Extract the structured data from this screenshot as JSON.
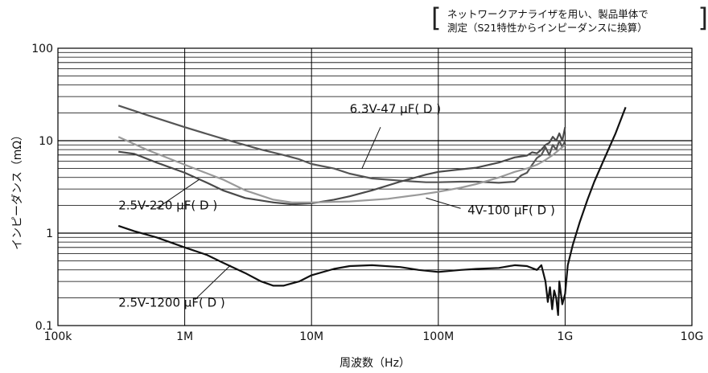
{
  "note": {
    "line1": "ネットワークアナライザを用い、製品単体で",
    "line2": "測定（S21特性からインピーダンスに換算）"
  },
  "chart_data": {
    "type": "line",
    "title": "",
    "xlabel": "周波数（Hz）",
    "ylabel": "インピーダンス（mΩ）",
    "xscale": "log",
    "yscale": "log",
    "xlim": [
      100000,
      10000000000
    ],
    "ylim": [
      0.1,
      100
    ],
    "x_ticks": [
      {
        "value": 100000,
        "label": "100k"
      },
      {
        "value": 1000000,
        "label": "1M"
      },
      {
        "value": 10000000,
        "label": "10M"
      },
      {
        "value": 100000000,
        "label": "100M"
      },
      {
        "value": 1000000000,
        "label": "1G"
      },
      {
        "value": 10000000000,
        "label": "10G"
      }
    ],
    "y_ticks": [
      {
        "value": 0.1,
        "label": "0.1"
      },
      {
        "value": 1,
        "label": "1"
      },
      {
        "value": 10,
        "label": "10"
      },
      {
        "value": 100,
        "label": "100"
      }
    ],
    "grid": true,
    "series": [
      {
        "name": "6.3V-47 μF( D )",
        "color": "#555555",
        "label_at": {
          "x": 20000000,
          "y": 20
        },
        "leader": {
          "from": [
            35000000,
            14
          ],
          "to": [
            25000000,
            5
          ]
        },
        "points": [
          [
            300000,
            24
          ],
          [
            500000,
            19
          ],
          [
            1000000,
            14
          ],
          [
            2000000,
            10.5
          ],
          [
            4000000,
            8
          ],
          [
            6000000,
            7
          ],
          [
            8000000,
            6.3
          ],
          [
            10000000,
            5.6
          ],
          [
            15000000,
            5
          ],
          [
            20000000,
            4.4
          ],
          [
            30000000,
            3.9
          ],
          [
            50000000,
            3.7
          ],
          [
            80000000,
            3.55
          ],
          [
            100000000,
            3.55
          ],
          [
            150000000,
            3.6
          ],
          [
            200000000,
            3.6
          ],
          [
            300000000,
            3.5
          ],
          [
            400000000,
            3.6
          ],
          [
            450000000,
            4.2
          ],
          [
            500000000,
            4.5
          ],
          [
            550000000,
            5.5
          ],
          [
            600000000,
            6.5
          ],
          [
            650000000,
            7
          ],
          [
            700000000,
            8.5
          ],
          [
            750000000,
            7
          ],
          [
            800000000,
            9
          ],
          [
            850000000,
            8
          ],
          [
            900000000,
            10
          ],
          [
            950000000,
            8.5
          ],
          [
            1000000000,
            10
          ]
        ]
      },
      {
        "name": "2.5V-220 μF( D )",
        "color": "#4a4a4a",
        "label_at": {
          "x": 300000,
          "y": 1.8
        },
        "leader": {
          "from": [
            600000,
            1.85
          ],
          "to": [
            1300000,
            3.8
          ]
        },
        "points": [
          [
            300000,
            7.6
          ],
          [
            400000,
            7.2
          ],
          [
            600000,
            5.8
          ],
          [
            1000000,
            4.5
          ],
          [
            1500000,
            3.5
          ],
          [
            2000000,
            2.9
          ],
          [
            3000000,
            2.4
          ],
          [
            5000000,
            2.15
          ],
          [
            7000000,
            2.05
          ],
          [
            10000000,
            2.1
          ],
          [
            15000000,
            2.3
          ],
          [
            20000000,
            2.5
          ],
          [
            30000000,
            2.9
          ],
          [
            50000000,
            3.6
          ],
          [
            80000000,
            4.3
          ],
          [
            100000000,
            4.6
          ],
          [
            150000000,
            4.9
          ],
          [
            200000000,
            5.1
          ],
          [
            300000000,
            5.8
          ],
          [
            400000000,
            6.6
          ],
          [
            500000000,
            6.9
          ],
          [
            550000000,
            7.5
          ],
          [
            600000000,
            7.3
          ],
          [
            650000000,
            8
          ],
          [
            700000000,
            9
          ],
          [
            750000000,
            9.5
          ],
          [
            800000000,
            11
          ],
          [
            850000000,
            10
          ],
          [
            900000000,
            12
          ],
          [
            950000000,
            10
          ],
          [
            1000000000,
            14
          ]
        ]
      },
      {
        "name": "4V-100 μF( D )",
        "color": "#9a9a9a",
        "label_at": {
          "x": 170000000,
          "y": 1.6
        },
        "leader": {
          "from": [
            150000000,
            1.85
          ],
          "to": [
            80000000,
            2.4
          ]
        },
        "points": [
          [
            300000,
            11
          ],
          [
            500000,
            8
          ],
          [
            1000000,
            5.5
          ],
          [
            2000000,
            3.8
          ],
          [
            3000000,
            2.9
          ],
          [
            5000000,
            2.3
          ],
          [
            7000000,
            2.15
          ],
          [
            10000000,
            2.15
          ],
          [
            20000000,
            2.2
          ],
          [
            40000000,
            2.35
          ],
          [
            70000000,
            2.6
          ],
          [
            100000000,
            2.8
          ],
          [
            150000000,
            3.1
          ],
          [
            200000000,
            3.4
          ],
          [
            300000000,
            4
          ],
          [
            400000000,
            4.6
          ],
          [
            500000000,
            5
          ],
          [
            600000000,
            5.5
          ],
          [
            700000000,
            6.2
          ],
          [
            800000000,
            7
          ],
          [
            900000000,
            8
          ],
          [
            1000000000,
            9
          ]
        ]
      },
      {
        "name": "2.5V-1200 μF( D )",
        "color": "#111111",
        "label_at": {
          "x": 300000,
          "y": 0.16
        },
        "leader": {
          "from": [
            1200000,
            0.19
          ],
          "to": [
            2300000,
            0.45
          ]
        },
        "points": [
          [
            300000,
            1.2
          ],
          [
            400000,
            1.05
          ],
          [
            600000,
            0.9
          ],
          [
            1000000,
            0.7
          ],
          [
            1500000,
            0.58
          ],
          [
            2000000,
            0.48
          ],
          [
            3000000,
            0.37
          ],
          [
            4000000,
            0.3
          ],
          [
            5000000,
            0.27
          ],
          [
            6000000,
            0.27
          ],
          [
            8000000,
            0.3
          ],
          [
            10000000,
            0.35
          ],
          [
            15000000,
            0.41
          ],
          [
            20000000,
            0.44
          ],
          [
            30000000,
            0.45
          ],
          [
            50000000,
            0.43
          ],
          [
            70000000,
            0.4
          ],
          [
            100000000,
            0.38
          ],
          [
            150000000,
            0.4
          ],
          [
            200000000,
            0.41
          ],
          [
            300000000,
            0.42
          ],
          [
            400000000,
            0.45
          ],
          [
            500000000,
            0.44
          ],
          [
            600000000,
            0.4
          ],
          [
            650000000,
            0.45
          ],
          [
            700000000,
            0.3
          ],
          [
            730000000,
            0.18
          ],
          [
            760000000,
            0.26
          ],
          [
            790000000,
            0.15
          ],
          [
            820000000,
            0.24
          ],
          [
            850000000,
            0.2
          ],
          [
            880000000,
            0.13
          ],
          [
            900000000,
            0.3
          ],
          [
            950000000,
            0.17
          ],
          [
            1000000000,
            0.22
          ],
          [
            1050000000,
            0.45
          ],
          [
            1150000000,
            0.75
          ],
          [
            1300000000,
            1.3
          ],
          [
            1500000000,
            2.3
          ],
          [
            1700000000,
            3.6
          ],
          [
            2000000000,
            6
          ],
          [
            2500000000,
            12
          ],
          [
            3000000000,
            23
          ]
        ]
      }
    ]
  }
}
